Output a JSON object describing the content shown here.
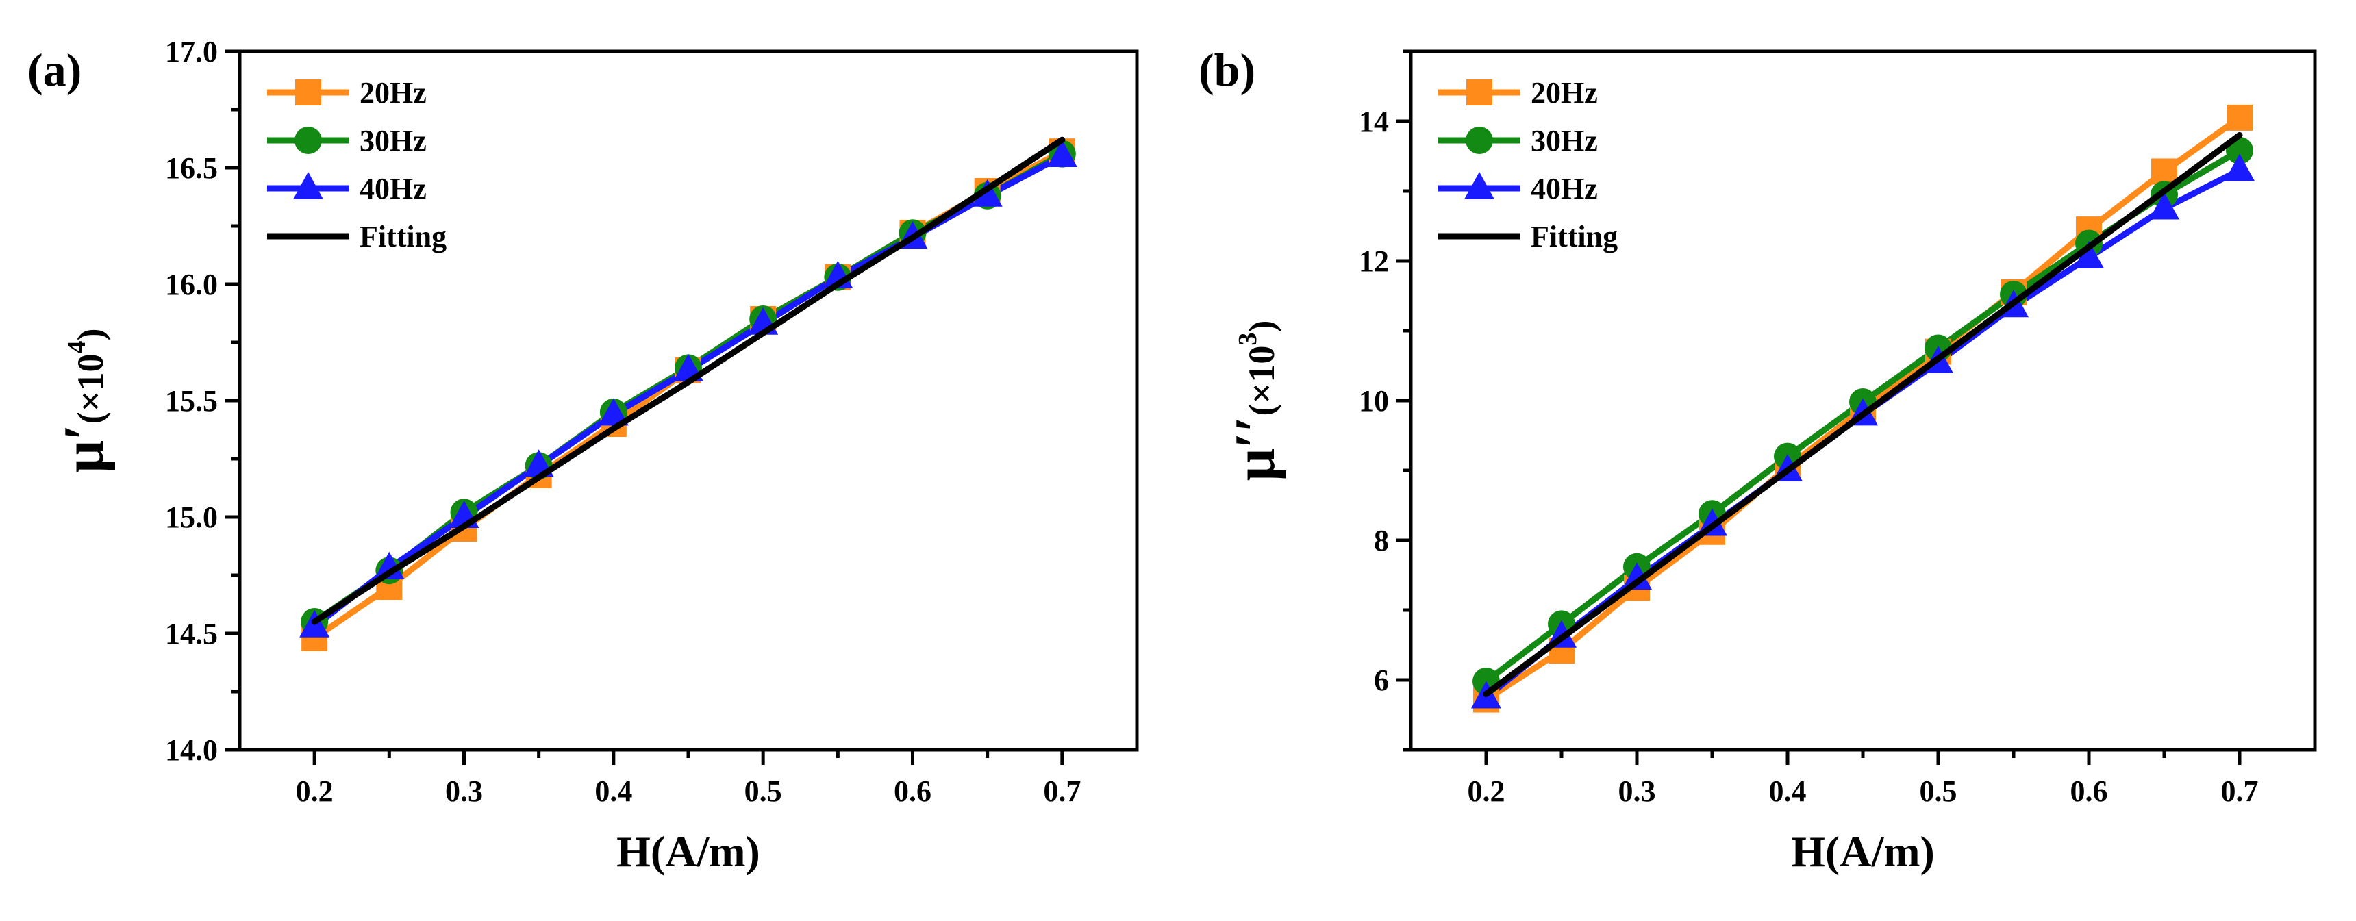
{
  "chart_data": [
    {
      "type": "line",
      "panel_label": "(a)",
      "xlabel": "H(A/m)",
      "ylabel": "μ′",
      "ylabel_suffix": "(×10",
      "ylabel_exponent": "4",
      "ylabel_close": ")",
      "xlim": [
        0.15,
        0.75
      ],
      "ylim": [
        14.0,
        17.0
      ],
      "xticks": [
        "0.2",
        "0.3",
        "0.4",
        "0.5",
        "0.6",
        "0.7"
      ],
      "yticks": [
        "14.0",
        "14.5",
        "15.0",
        "15.5",
        "16.0",
        "16.5",
        "17.0"
      ],
      "x": [
        0.2,
        0.25,
        0.3,
        0.35,
        0.4,
        0.45,
        0.5,
        0.55,
        0.6,
        0.65,
        0.7
      ],
      "legend_position": "top-left",
      "series": [
        {
          "name": "20Hz",
          "color": "#ff8c1a",
          "marker": "square",
          "values": [
            14.48,
            14.7,
            14.95,
            15.18,
            15.4,
            15.63,
            15.85,
            16.03,
            16.22,
            16.4,
            16.57
          ]
        },
        {
          "name": "30Hz",
          "color": "#138a13",
          "marker": "circle",
          "values": [
            14.55,
            14.77,
            15.02,
            15.22,
            15.45,
            15.64,
            15.85,
            16.03,
            16.22,
            16.38,
            16.56
          ]
        },
        {
          "name": "40Hz",
          "color": "#1a1aff",
          "marker": "triangle",
          "values": [
            14.53,
            14.78,
            15.0,
            15.22,
            15.44,
            15.63,
            15.83,
            16.03,
            16.2,
            16.38,
            16.55
          ]
        },
        {
          "name": "Fitting",
          "color": "#000000",
          "marker": "none",
          "values": [
            14.55,
            14.76,
            14.96,
            15.17,
            15.38,
            15.58,
            15.79,
            16.0,
            16.2,
            16.41,
            16.62
          ]
        }
      ]
    },
    {
      "type": "line",
      "panel_label": "(b)",
      "xlabel": "H(A/m)",
      "ylabel": "μ′′",
      "ylabel_suffix": "(×10",
      "ylabel_exponent": "3",
      "ylabel_close": ")",
      "xlim": [
        0.15,
        0.75
      ],
      "ylim": [
        5.0,
        15.0
      ],
      "xticks": [
        "0.2",
        "0.3",
        "0.4",
        "0.5",
        "0.6",
        "0.7"
      ],
      "yticks": [
        "6",
        "8",
        "10",
        "12",
        "14"
      ],
      "ytick_values": [
        6,
        8,
        10,
        12,
        14
      ],
      "x": [
        0.2,
        0.25,
        0.3,
        0.35,
        0.4,
        0.45,
        0.5,
        0.55,
        0.6,
        0.65,
        0.7
      ],
      "legend_position": "top-left",
      "series": [
        {
          "name": "20Hz",
          "color": "#ff8c1a",
          "marker": "square",
          "values": [
            5.72,
            6.42,
            7.32,
            8.12,
            9.05,
            9.88,
            10.7,
            11.55,
            12.45,
            13.28,
            14.05
          ]
        },
        {
          "name": "30Hz",
          "color": "#138a13",
          "marker": "circle",
          "values": [
            5.98,
            6.8,
            7.62,
            8.38,
            9.2,
            9.98,
            10.75,
            11.52,
            12.25,
            12.95,
            13.58
          ]
        },
        {
          "name": "40Hz",
          "color": "#1a1aff",
          "marker": "triangle",
          "values": [
            5.75,
            6.62,
            7.45,
            8.22,
            9.0,
            9.8,
            10.55,
            11.35,
            12.05,
            12.75,
            13.3
          ]
        },
        {
          "name": "Fitting",
          "color": "#000000",
          "marker": "none",
          "values": [
            5.8,
            6.6,
            7.4,
            8.2,
            9.0,
            9.8,
            10.6,
            11.4,
            12.2,
            13.0,
            13.8
          ]
        }
      ]
    }
  ]
}
